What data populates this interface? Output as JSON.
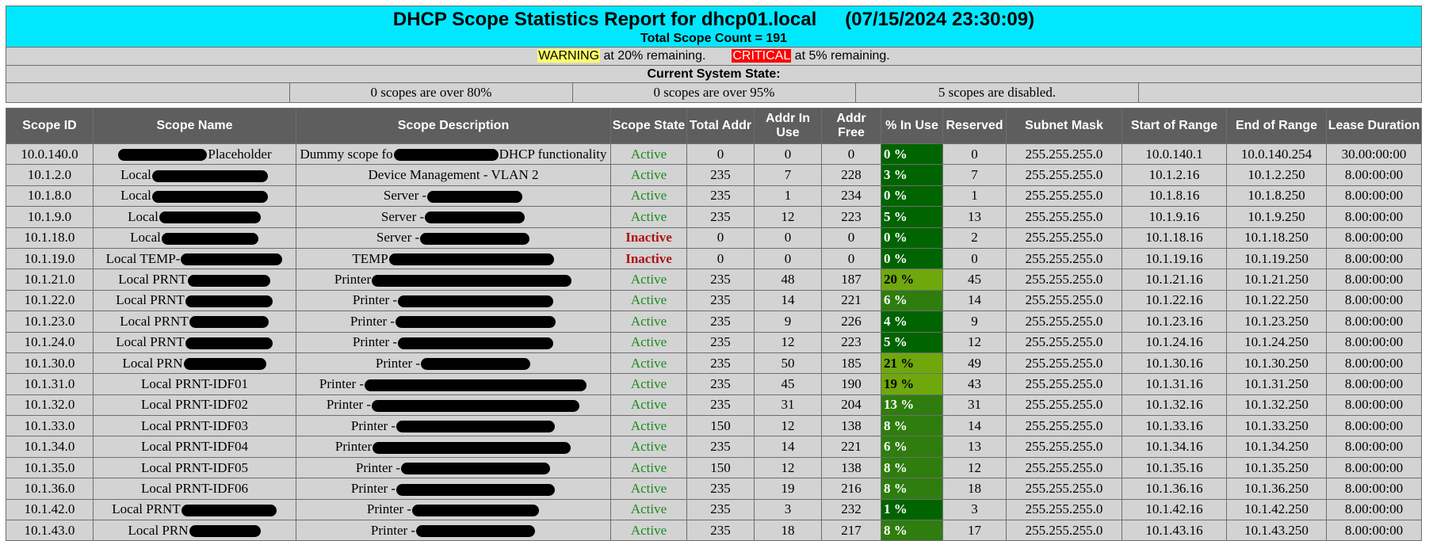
{
  "report": {
    "title": "DHCP Scope Statistics Report for dhcp01.local",
    "datetime": "(07/15/2024 23:30:09)",
    "scope_count_text": "Total Scope Count = 191"
  },
  "legend": {
    "warning_tag": "WARNING",
    "warning_text": " at 20% remaining.",
    "critical_tag": "CRITICAL",
    "critical_text": " at 5% remaining."
  },
  "system_state": {
    "heading": "Current System State:",
    "over80": "0 scopes are over 80%",
    "over95": "0 scopes are over 95%",
    "disabled": "5 scopes are disabled."
  },
  "colors": {
    "banner": "#00e8ff",
    "header_bg": "#5e5e5e",
    "row_bg": "#d3d3d3",
    "active": "#1b8a1b",
    "inactive": "#b01010",
    "pct_low": "#006400",
    "pct_mid": "#2e7d0e",
    "pct_high": "#6fa80d",
    "warning": "#ffff66",
    "critical": "#ff0000"
  },
  "columns": [
    "Scope ID",
    "Scope Name",
    "Scope Description",
    "Scope State",
    "Total Addr",
    "Addr In Use",
    "Addr Free",
    "% In Use",
    "Reserved",
    "Subnet Mask",
    "Start of Range",
    "End of Range",
    "Lease Duration"
  ],
  "rows": [
    {
      "id": "10.0.140.0",
      "name_pre": "",
      "name_post": "Placeholder",
      "desc_pre": "Dummy scope fo",
      "desc_post": "DHCP functionality",
      "state": "Active",
      "total": "0",
      "inuse": "0",
      "free": "0",
      "pct": "0 %",
      "res": "0",
      "mask": "255.255.255.0",
      "start": "10.0.140.1",
      "end": "10.0.140.254",
      "lease": "30.00:00:00"
    },
    {
      "id": "10.1.2.0",
      "name_pre": "Local",
      "name_post": "",
      "desc_pre": "",
      "desc_post": "Device Management - VLAN 2",
      "state": "Active",
      "total": "235",
      "inuse": "7",
      "free": "228",
      "pct": "3 %",
      "res": "7",
      "mask": "255.255.255.0",
      "start": "10.1.2.16",
      "end": "10.1.2.250",
      "lease": "8.00:00:00"
    },
    {
      "id": "10.1.8.0",
      "name_pre": "Local",
      "name_post": "",
      "desc_pre": "Server -",
      "desc_post": "",
      "state": "Active",
      "total": "235",
      "inuse": "1",
      "free": "234",
      "pct": "0 %",
      "res": "1",
      "mask": "255.255.255.0",
      "start": "10.1.8.16",
      "end": "10.1.8.250",
      "lease": "8.00:00:00"
    },
    {
      "id": "10.1.9.0",
      "name_pre": "Local",
      "name_post": "",
      "desc_pre": "Server -",
      "desc_post": "",
      "state": "Active",
      "total": "235",
      "inuse": "12",
      "free": "223",
      "pct": "5 %",
      "res": "13",
      "mask": "255.255.255.0",
      "start": "10.1.9.16",
      "end": "10.1.9.250",
      "lease": "8.00:00:00"
    },
    {
      "id": "10.1.18.0",
      "name_pre": "Local",
      "name_post": "",
      "desc_pre": "Server -",
      "desc_post": "",
      "state": "Inactive",
      "total": "0",
      "inuse": "0",
      "free": "0",
      "pct": "0 %",
      "res": "2",
      "mask": "255.255.255.0",
      "start": "10.1.18.16",
      "end": "10.1.18.250",
      "lease": "8.00:00:00"
    },
    {
      "id": "10.1.19.0",
      "name_pre": "Local TEMP-",
      "name_post": "",
      "desc_pre": "TEMP",
      "desc_post": "",
      "state": "Inactive",
      "total": "0",
      "inuse": "0",
      "free": "0",
      "pct": "0 %",
      "res": "0",
      "mask": "255.255.255.0",
      "start": "10.1.19.16",
      "end": "10.1.19.250",
      "lease": "8.00:00:00"
    },
    {
      "id": "10.1.21.0",
      "name_pre": "Local PRNT",
      "name_post": "",
      "desc_pre": "Printer",
      "desc_post": "",
      "state": "Active",
      "total": "235",
      "inuse": "48",
      "free": "187",
      "pct": "20 %",
      "res": "45",
      "mask": "255.255.255.0",
      "start": "10.1.21.16",
      "end": "10.1.21.250",
      "lease": "8.00:00:00"
    },
    {
      "id": "10.1.22.0",
      "name_pre": "Local PRNT",
      "name_post": "",
      "desc_pre": "Printer -",
      "desc_post": "",
      "state": "Active",
      "total": "235",
      "inuse": "14",
      "free": "221",
      "pct": "6 %",
      "res": "14",
      "mask": "255.255.255.0",
      "start": "10.1.22.16",
      "end": "10.1.22.250",
      "lease": "8.00:00:00"
    },
    {
      "id": "10.1.23.0",
      "name_pre": "Local PRNT",
      "name_post": "",
      "desc_pre": "Printer -",
      "desc_post": "",
      "state": "Active",
      "total": "235",
      "inuse": "9",
      "free": "226",
      "pct": "4 %",
      "res": "9",
      "mask": "255.255.255.0",
      "start": "10.1.23.16",
      "end": "10.1.23.250",
      "lease": "8.00:00:00"
    },
    {
      "id": "10.1.24.0",
      "name_pre": "Local PRNT",
      "name_post": "",
      "desc_pre": "Printer -",
      "desc_post": "",
      "state": "Active",
      "total": "235",
      "inuse": "12",
      "free": "223",
      "pct": "5 %",
      "res": "12",
      "mask": "255.255.255.0",
      "start": "10.1.24.16",
      "end": "10.1.24.250",
      "lease": "8.00:00:00"
    },
    {
      "id": "10.1.30.0",
      "name_pre": "Local PRN",
      "name_post": "",
      "desc_pre": "Printer -",
      "desc_post": "",
      "state": "Active",
      "total": "235",
      "inuse": "50",
      "free": "185",
      "pct": "21 %",
      "res": "49",
      "mask": "255.255.255.0",
      "start": "10.1.30.16",
      "end": "10.1.30.250",
      "lease": "8.00:00:00"
    },
    {
      "id": "10.1.31.0",
      "name_pre": "Local PRNT-IDF01",
      "name_post": "",
      "desc_pre": "Printer -",
      "desc_post": "",
      "state": "Active",
      "total": "235",
      "inuse": "45",
      "free": "190",
      "pct": "19 %",
      "res": "43",
      "mask": "255.255.255.0",
      "start": "10.1.31.16",
      "end": "10.1.31.250",
      "lease": "8.00:00:00"
    },
    {
      "id": "10.1.32.0",
      "name_pre": "Local PRNT-IDF02",
      "name_post": "",
      "desc_pre": "Printer -",
      "desc_post": "",
      "state": "Active",
      "total": "235",
      "inuse": "31",
      "free": "204",
      "pct": "13 %",
      "res": "31",
      "mask": "255.255.255.0",
      "start": "10.1.32.16",
      "end": "10.1.32.250",
      "lease": "8.00:00:00"
    },
    {
      "id": "10.1.33.0",
      "name_pre": "Local PRNT-IDF03",
      "name_post": "",
      "desc_pre": "Printer -",
      "desc_post": "",
      "state": "Active",
      "total": "150",
      "inuse": "12",
      "free": "138",
      "pct": "8 %",
      "res": "14",
      "mask": "255.255.255.0",
      "start": "10.1.33.16",
      "end": "10.1.33.250",
      "lease": "8.00:00:00"
    },
    {
      "id": "10.1.34.0",
      "name_pre": "Local PRNT-IDF04",
      "name_post": "",
      "desc_pre": "Printer",
      "desc_post": "",
      "state": "Active",
      "total": "235",
      "inuse": "14",
      "free": "221",
      "pct": "6 %",
      "res": "13",
      "mask": "255.255.255.0",
      "start": "10.1.34.16",
      "end": "10.1.34.250",
      "lease": "8.00:00:00"
    },
    {
      "id": "10.1.35.0",
      "name_pre": "Local PRNT-IDF05",
      "name_post": "",
      "desc_pre": "Printer -",
      "desc_post": "",
      "state": "Active",
      "total": "150",
      "inuse": "12",
      "free": "138",
      "pct": "8 %",
      "res": "12",
      "mask": "255.255.255.0",
      "start": "10.1.35.16",
      "end": "10.1.35.250",
      "lease": "8.00:00:00"
    },
    {
      "id": "10.1.36.0",
      "name_pre": "Local PRNT-IDF06",
      "name_post": "",
      "desc_pre": "Printer -",
      "desc_post": "",
      "state": "Active",
      "total": "235",
      "inuse": "19",
      "free": "216",
      "pct": "8 %",
      "res": "18",
      "mask": "255.255.255.0",
      "start": "10.1.36.16",
      "end": "10.1.36.250",
      "lease": "8.00:00:00"
    },
    {
      "id": "10.1.42.0",
      "name_pre": "Local PRNT",
      "name_post": "",
      "desc_pre": "Printer -",
      "desc_post": "",
      "state": "Active",
      "total": "235",
      "inuse": "3",
      "free": "232",
      "pct": "1 %",
      "res": "3",
      "mask": "255.255.255.0",
      "start": "10.1.42.16",
      "end": "10.1.42.250",
      "lease": "8.00:00:00"
    },
    {
      "id": "10.1.43.0",
      "name_pre": "Local PRN",
      "name_post": "",
      "desc_pre": "Printer -",
      "desc_post": "",
      "state": "Active",
      "total": "235",
      "inuse": "18",
      "free": "217",
      "pct": "8 %",
      "res": "17",
      "mask": "255.255.255.0",
      "start": "10.1.43.16",
      "end": "10.1.43.250",
      "lease": "8.00:00:00"
    }
  ]
}
